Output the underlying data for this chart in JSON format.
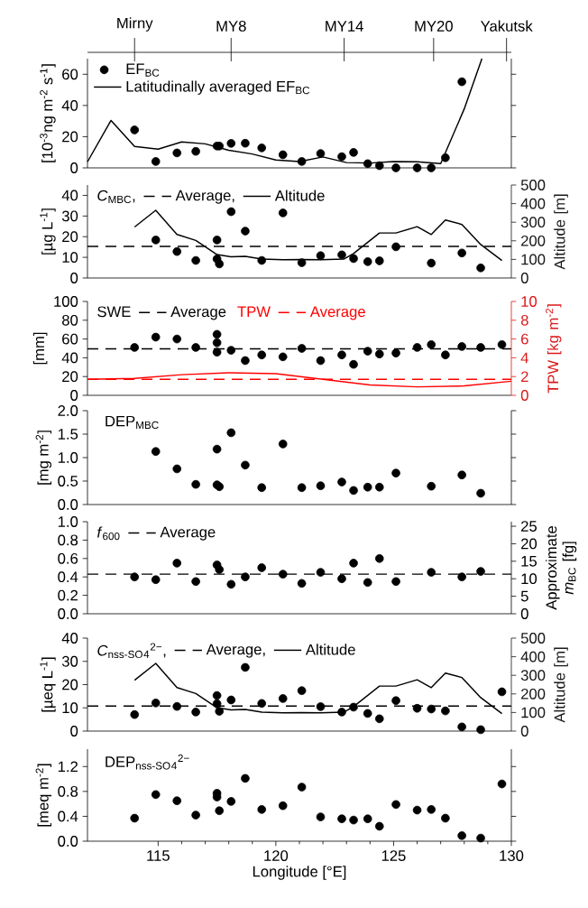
{
  "chart_data": [
    {
      "type": "scatter",
      "xlim": [
        112,
        130
      ],
      "ylim": [
        0,
        70
      ],
      "yticks": [
        0,
        20,
        40,
        60
      ],
      "tick_labels": "y",
      "legend": "top left",
      "annotations": [
        {
          "text": "Mirny",
          "x": 114.0
        },
        {
          "text": "MY8",
          "x": 118.1
        },
        {
          "text": "MY14",
          "x": 122.9
        },
        {
          "text": "MY20",
          "x": 126.7
        },
        "Yakutsk"
      ],
      "ylabel": "[10$^{-3}$ng m$^{-2}$ s$^{-1}$]",
      "series": [
        {
          "name": "EF$_{BC}$",
          "color": "#000000",
          "marker": "circle",
          "x": [
            114.0,
            114.9,
            115.8,
            116.6,
            117.5,
            117.6,
            118.1,
            118.7,
            119.4,
            120.3,
            121.1,
            121.9,
            122.8,
            123.3,
            123.9,
            124.4,
            125.1,
            126.0,
            126.6,
            127.2,
            127.9
          ],
          "values": [
            24.3,
            4.1,
            9.6,
            10.6,
            14,
            14,
            15.7,
            15.8,
            12.8,
            8.4,
            4.1,
            9.2,
            7.2,
            9.9,
            2.7,
            1.4,
            0,
            0,
            0,
            6.5,
            55.2
          ]
        },
        {
          "name": "Latitudinally averaged EF$_{BC}$",
          "type": "line",
          "color": "#000000",
          "x": [
            112,
            113,
            114,
            115,
            116,
            117,
            118,
            119,
            120,
            121,
            122,
            123,
            124,
            125,
            126,
            127,
            128,
            128.75
          ],
          "values": [
            3.9,
            30.4,
            13.7,
            12,
            16.6,
            15.4,
            11.3,
            8.9,
            5.1,
            4.1,
            7,
            3.4,
            3.1,
            4.1,
            3.9,
            2.7,
            37.8,
            70
          ]
        }
      ]
    },
    {
      "type": "scatter",
      "title": "*C*$_{MBC}$,",
      "xlim": [
        112,
        130
      ],
      "ylim": [
        0,
        45
      ],
      "yticks": [
        0,
        10,
        20,
        30,
        40
      ],
      "y2lim": [
        0,
        500
      ],
      "y2ticks": [
        0,
        100,
        200,
        300,
        400,
        500
      ],
      "tick_labels": "y",
      "legend": "top left",
      "ylabel": "[µg L$^{-1}$]",
      "y2label": "Altitude [m]",
      "ref_lines": [
        {
          "axis": "y",
          "value": 15.3,
          "label": "Average,",
          "color": "#000000",
          "line_style": "dashed"
        }
      ],
      "series": [
        {
          "color": "#000000",
          "marker": "circle",
          "x": [
            114.9,
            115.8,
            116.6,
            117.5,
            117.5,
            117.6,
            118.1,
            118.7,
            119.4,
            120.3,
            121.1,
            121.9,
            122.8,
            123.3,
            123.9,
            124.4,
            125.1,
            126.6,
            127.9,
            128.7
          ],
          "values": [
            18.4,
            12.8,
            8.5,
            18.4,
            9.2,
            6.8,
            32.1,
            22.7,
            8.5,
            31.5,
            7.4,
            10.8,
            11.2,
            9.4,
            7.9,
            8.3,
            15.1,
            7.2,
            12.1,
            4.9
          ]
        },
        {
          "name": "Altitude",
          "type": "line",
          "axis": "y2",
          "color": "#000000",
          "x": [
            114.0,
            114.9,
            115.8,
            116.6,
            117.5,
            118.1,
            118.7,
            119.4,
            120.3,
            121.1,
            121.9,
            122.9,
            123.3,
            124.4,
            125.1,
            126.0,
            126.6,
            127.2,
            127.9,
            128.7,
            129.6
          ],
          "values": [
            274,
            364,
            234,
            202,
            126,
            114,
            116,
            102,
            98,
            100,
            98,
            102,
            132,
            242,
            242,
            276,
            234,
            312,
            288,
            180,
            94
          ]
        }
      ]
    },
    {
      "type": "scatter",
      "xlim": [
        112,
        130
      ],
      "ylim": [
        0,
        100
      ],
      "yticks": [
        0,
        20,
        40,
        60,
        80,
        100
      ],
      "y2lim": [
        0,
        10
      ],
      "y2ticks": [
        0,
        2,
        4,
        6,
        8,
        10
      ],
      "tick_labels": "y",
      "legend": "top left",
      "ylabel": "[mm]",
      "y2label": "TPW  [kg m$^{-2}$]",
      "ref_lines": [
        {
          "axis": "y",
          "value": 49.5,
          "label": "Average",
          "color": "#000000",
          "line_style": "dashed"
        },
        {
          "axis": "y2",
          "value": 1.7,
          "label": "Average",
          "color": "#ff0000",
          "line_style": "dashed"
        }
      ],
      "series": [
        {
          "name": "SWE",
          "color": "#000000",
          "marker": "circle",
          "x": [
            114.0,
            114.9,
            115.8,
            116.6,
            117.5,
            117.5,
            117.5,
            118.1,
            118.7,
            119.4,
            120.3,
            121.1,
            121.9,
            122.8,
            123.3,
            123.9,
            124.4,
            125.1,
            126.0,
            126.6,
            127.2,
            127.9,
            128.7,
            129.6
          ],
          "values": [
            51,
            62,
            60,
            51,
            65,
            56,
            46,
            48,
            37,
            43,
            41,
            50,
            37,
            43,
            33,
            47,
            44,
            45,
            51,
            54,
            43,
            52,
            51,
            54
          ]
        },
        {
          "name": "TPW",
          "type": "line",
          "axis": "y2",
          "color": "#ff0000",
          "x": [
            112,
            114,
            116,
            118,
            120,
            122,
            124,
            126,
            128,
            130
          ],
          "values": [
            1.7,
            1.8,
            2.2,
            2.4,
            2.3,
            1.7,
            1.1,
            0.9,
            1.0,
            1.5
          ]
        }
      ]
    },
    {
      "type": "scatter",
      "title": "DEP$_{MBC}$",
      "xlim": [
        112,
        130
      ],
      "ylim": [
        0,
        2
      ],
      "yticks": [
        {
          "value": 0,
          "label": "0.0"
        },
        0.5,
        {
          "value": 1,
          "label": "1.0"
        },
        1.5,
        {
          "value": 2,
          "label": "2.0"
        }
      ],
      "tick_labels": "y",
      "ylabel": "[mg m$^{-2}$]",
      "series": [
        {
          "color": "#000000",
          "marker": "circle",
          "x": [
            114.9,
            115.8,
            116.6,
            117.5,
            117.5,
            117.6,
            118.1,
            118.7,
            119.4,
            120.3,
            121.1,
            121.9,
            122.8,
            123.3,
            123.9,
            124.4,
            125.1,
            126.6,
            127.9,
            128.7
          ],
          "values": [
            1.13,
            0.76,
            0.43,
            1.18,
            0.42,
            0.38,
            1.53,
            0.84,
            0.36,
            1.29,
            0.36,
            0.4,
            0.48,
            0.3,
            0.37,
            0.37,
            0.67,
            0.39,
            0.63,
            0.24
          ]
        }
      ]
    },
    {
      "type": "scatter",
      "title": "*f*$_{600}$",
      "xlim": [
        112,
        130
      ],
      "ylim": [
        0,
        1
      ],
      "yticks": [
        {
          "value": 0,
          "label": "0.0"
        },
        0.2,
        0.4,
        0.6,
        0.8,
        {
          "value": 1,
          "label": "1.0"
        }
      ],
      "y2lim": [
        0,
        26.3
      ],
      "y2ticks": [
        0,
        5,
        10,
        15,
        20,
        25
      ],
      "tick_labels": "y",
      "legend": "top left",
      "y2label": "Approximate *m*$_{BC}$ [fg]",
      "ref_lines": [
        {
          "axis": "y",
          "value": 0.43,
          "label": "Average",
          "color": "#000000",
          "line_style": "dashed"
        }
      ],
      "series": [
        {
          "color": "#000000",
          "marker": "circle",
          "x": [
            114.0,
            114.9,
            115.8,
            116.6,
            117.5,
            117.6,
            118.1,
            118.7,
            119.4,
            120.3,
            121.1,
            121.9,
            122.8,
            123.3,
            123.9,
            124.4,
            125.1,
            126.6,
            127.9,
            128.7
          ],
          "values": [
            0.4,
            0.37,
            0.55,
            0.35,
            0.53,
            0.48,
            0.32,
            0.4,
            0.5,
            0.43,
            0.33,
            0.45,
            0.38,
            0.55,
            0.34,
            0.6,
            0.35,
            0.45,
            0.4,
            0.46
          ]
        }
      ]
    },
    {
      "type": "scatter",
      "title": "*C*$_{nss-SO}$$_{4}$$^{2−}$,",
      "xlim": [
        112,
        130
      ],
      "ylim": [
        0,
        40
      ],
      "yticks": [
        0,
        10,
        20,
        30,
        40
      ],
      "y2lim": [
        0,
        500
      ],
      "y2ticks": [
        0,
        100,
        200,
        300,
        400,
        500
      ],
      "tick_labels": "y",
      "legend": "top left",
      "ylabel": "[µeq L$^{-1}$]",
      "y2label": "Altitude [m]",
      "ref_lines": [
        {
          "axis": "y",
          "value": 10.8,
          "label": "Average,",
          "color": "#000000",
          "line_style": "dashed"
        }
      ],
      "series": [
        {
          "color": "#000000",
          "marker": "circle",
          "x": [
            114.0,
            114.9,
            115.8,
            116.6,
            117.5,
            117.5,
            117.6,
            118.1,
            118.7,
            119.4,
            120.3,
            121.1,
            121.9,
            122.8,
            123.3,
            123.9,
            124.4,
            125.1,
            126.0,
            126.6,
            127.2,
            127.9,
            128.7,
            129.6
          ],
          "values": [
            7.1,
            12.1,
            10.6,
            8.2,
            15.3,
            11.8,
            8.5,
            13.4,
            27.4,
            11.9,
            14.0,
            17.4,
            10.5,
            8.2,
            10.3,
            7.6,
            5.3,
            13.1,
            9.8,
            9.5,
            8.7,
            1.8,
            0.6,
            16.9
          ]
        },
        {
          "name": "Altitude",
          "type": "line",
          "axis": "y2",
          "color": "#000000",
          "x": [
            114.0,
            114.9,
            115.8,
            116.6,
            117.5,
            118.1,
            118.7,
            119.4,
            120.3,
            121.1,
            121.9,
            122.9,
            123.3,
            124.4,
            125.1,
            126.0,
            126.6,
            127.2,
            127.9,
            128.7,
            129.6
          ],
          "values": [
            274,
            364,
            234,
            202,
            126,
            114,
            116,
            102,
            98,
            100,
            98,
            102,
            132,
            242,
            242,
            276,
            234,
            312,
            288,
            180,
            94
          ]
        }
      ]
    },
    {
      "type": "scatter",
      "title": "DEP$_{nss-SO}$$_{4}$$^{2−}$",
      "xlim": [
        112,
        130
      ],
      "ylim": [
        0,
        1.48
      ],
      "yticks": [
        {
          "value": 0,
          "label": "0.0"
        },
        0.4,
        0.8,
        1.2
      ],
      "xticks": [
        115,
        120,
        125,
        130
      ],
      "ylabel": "[meq m$^{-2}$]",
      "xlabel": "Longitude [°E]",
      "series": [
        {
          "color": "#000000",
          "marker": "circle",
          "x": [
            114.0,
            114.9,
            115.8,
            116.6,
            117.5,
            117.5,
            117.6,
            118.1,
            118.7,
            119.4,
            120.3,
            121.1,
            121.9,
            122.8,
            123.3,
            123.9,
            124.4,
            125.1,
            126.0,
            126.6,
            127.2,
            127.9,
            128.7,
            129.6
          ],
          "values": [
            0.37,
            0.75,
            0.65,
            0.42,
            0.77,
            0.71,
            0.49,
            0.64,
            1.01,
            0.51,
            0.57,
            0.87,
            0.39,
            0.36,
            0.34,
            0.36,
            0.24,
            0.59,
            0.5,
            0.51,
            0.37,
            0.09,
            0.05,
            0.92
          ]
        }
      ]
    }
  ]
}
